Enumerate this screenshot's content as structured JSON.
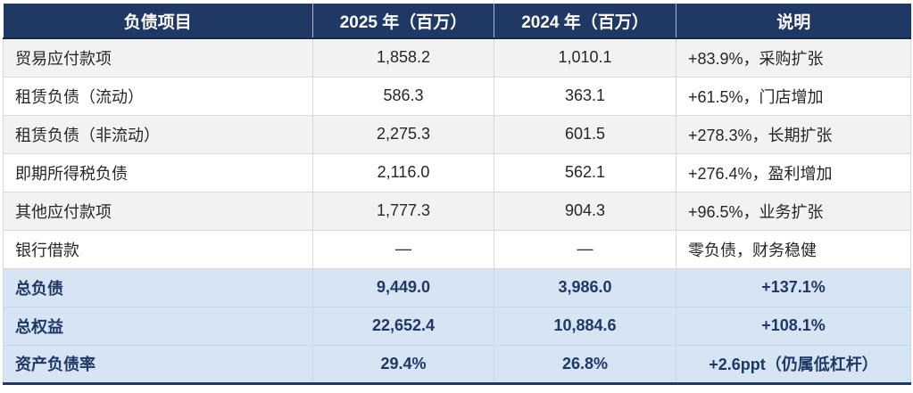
{
  "table": {
    "columns": [
      {
        "label": "负债项目"
      },
      {
        "label": "2025 年（百万）"
      },
      {
        "label": "2024 年（百万）"
      },
      {
        "label": "说明"
      }
    ],
    "rows": [
      {
        "item": "贸易应付款项",
        "v2025": "1,858.2",
        "v2024": "1,010.1",
        "note": "+83.9%，采购扩张"
      },
      {
        "item": "租赁负债（流动）",
        "v2025": "586.3",
        "v2024": "363.1",
        "note": "+61.5%，门店增加"
      },
      {
        "item": "租赁负债（非流动）",
        "v2025": "2,275.3",
        "v2024": "601.5",
        "note": "+278.3%，长期扩张"
      },
      {
        "item": "即期所得税负债",
        "v2025": "2,116.0",
        "v2024": "562.1",
        "note": "+276.4%，盈利增加"
      },
      {
        "item": "其他应付款项",
        "v2025": "1,777.3",
        "v2024": "904.3",
        "note": "+96.5%，业务扩张"
      },
      {
        "item": "银行借款",
        "v2025": "—",
        "v2024": "—",
        "note": "零负债，财务稳健"
      },
      {
        "item": "总负债",
        "v2025": "9,449.0",
        "v2024": "3,986.0",
        "note": "+137.1%"
      },
      {
        "item": "总权益",
        "v2025": "22,652.4",
        "v2024": "10,884.6",
        "note": "+108.1%"
      },
      {
        "item": "资产负债率",
        "v2025": "29.4%",
        "v2024": "26.8%",
        "note": "+2.6ppt（仍属低杠杆）"
      }
    ],
    "colors": {
      "header_bg": "#1F3864",
      "header_text": "#FFFFFF",
      "highlight_bg": "#D6E4F4",
      "highlight_text": "#1F3864",
      "stripe_bg": "#F2F2F2",
      "body_text": "#262626",
      "border": "#D9D9D9"
    }
  }
}
